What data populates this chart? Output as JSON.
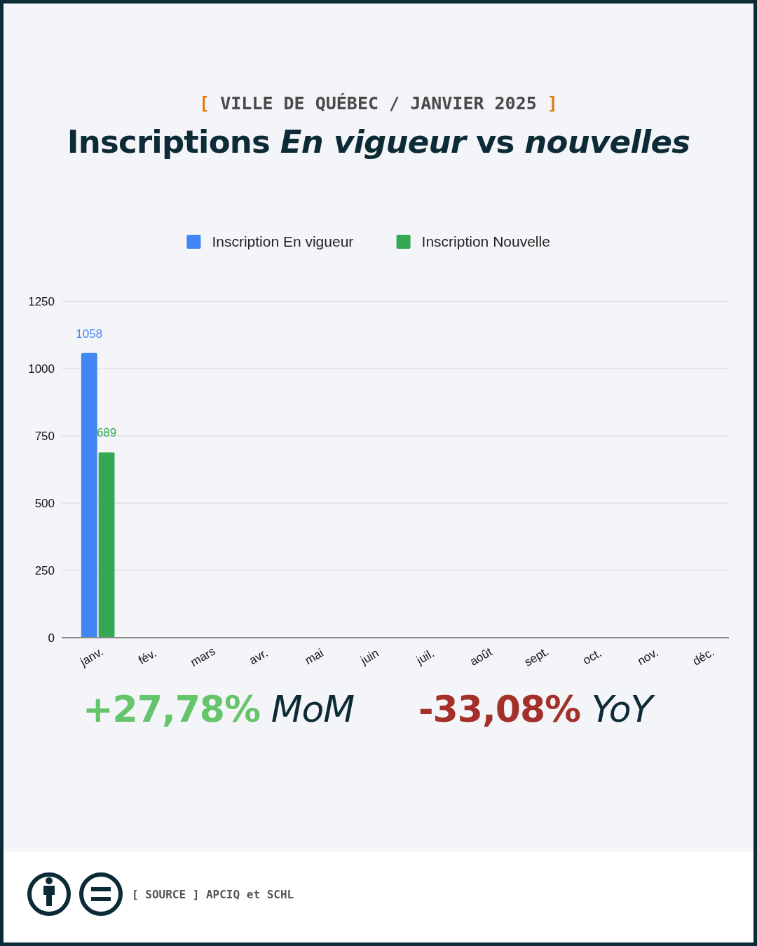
{
  "chart_data": {
    "type": "bar",
    "subtitle": "[ VILLE DE QUÉBEC / JANVIER 2025 ]",
    "title": "Inscriptions En vigueur vs nouvelles",
    "categories": [
      "janv.",
      "fév.",
      "mars",
      "avr.",
      "mai",
      "juin",
      "juil.",
      "août",
      "sept.",
      "oct.",
      "nov.",
      "déc."
    ],
    "series": [
      {
        "name": "Inscription En vigueur",
        "color": "#4285f4",
        "values": [
          1058,
          null,
          null,
          null,
          null,
          null,
          null,
          null,
          null,
          null,
          null,
          null
        ]
      },
      {
        "name": "Inscription Nouvelle",
        "color": "#34a853",
        "values": [
          689,
          null,
          null,
          null,
          null,
          null,
          null,
          null,
          null,
          null,
          null,
          null
        ]
      }
    ],
    "ylim": [
      0,
      1250
    ],
    "yticks": [
      0,
      250,
      500,
      750,
      1000,
      1250
    ],
    "grid": "y",
    "legend": "top",
    "data_labels": true,
    "annotations": [
      "+27,78% MoM",
      "-33,08% YoY",
      "[ SOURCE ] APCIQ et SCHL"
    ]
  }
}
